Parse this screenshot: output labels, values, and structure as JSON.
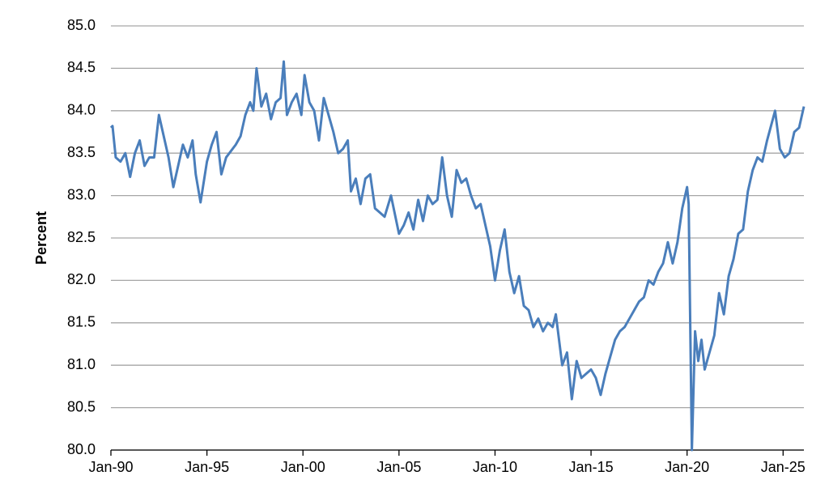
{
  "chart_data": {
    "type": "line",
    "y_label": "Percent",
    "x": [
      "Jan-90",
      "Feb-90",
      "Apr-90",
      "Jul-90",
      "Oct-90",
      "Jan-91",
      "Apr-91",
      "Jul-91",
      "Oct-91",
      "Jan-92",
      "Apr-92",
      "Jul-92",
      "Oct-92",
      "Jan-93",
      "Apr-93",
      "Jul-93",
      "Oct-93",
      "Jan-94",
      "Apr-94",
      "Jun-94",
      "Sep-94",
      "Jan-95",
      "Apr-95",
      "Jul-95",
      "Oct-95",
      "Jan-96",
      "Jul-96",
      "Oct-96",
      "Jan-97",
      "Apr-97",
      "Jun-97",
      "Aug-97",
      "Nov-97",
      "Feb-98",
      "May-98",
      "Aug-98",
      "Nov-98",
      "Jan-99",
      "Mar-99",
      "Jun-99",
      "Sep-99",
      "Dec-99",
      "Feb-00",
      "May-00",
      "Aug-00",
      "Nov-00",
      "Feb-01",
      "May-01",
      "Aug-01",
      "Nov-01",
      "Feb-02",
      "May-02",
      "Jul-02",
      "Oct-02",
      "Jan-03",
      "Apr-03",
      "Jul-03",
      "Oct-03",
      "Jan-04",
      "Apr-04",
      "Aug-04",
      "Jan-05",
      "Apr-05",
      "Jul-05",
      "Oct-05",
      "Jan-06",
      "Apr-06",
      "Jul-06",
      "Oct-06",
      "Jan-07",
      "Apr-07",
      "Jul-07",
      "Oct-07",
      "Jan-08",
      "Apr-08",
      "Jul-08",
      "Oct-08",
      "Jan-09",
      "Apr-09",
      "Jul-09",
      "Oct-09",
      "Jan-10",
      "Apr-10",
      "Jul-10",
      "Oct-10",
      "Jan-11",
      "Apr-11",
      "Jul-11",
      "Oct-11",
      "Jan-12",
      "Apr-12",
      "Jul-12",
      "Oct-12",
      "Jan-13",
      "Mar-13",
      "Jul-13",
      "Oct-13",
      "Jan-14",
      "Apr-14",
      "Jul-14",
      "Oct-14",
      "Jan-15",
      "Apr-15",
      "Jul-15",
      "Oct-15",
      "Jan-16",
      "Apr-16",
      "Jul-16",
      "Oct-16",
      "Jan-17",
      "Apr-17",
      "Jul-17",
      "Oct-17",
      "Jan-18",
      "Apr-18",
      "Jul-18",
      "Oct-18",
      "Jan-19",
      "Apr-19",
      "Jul-19",
      "Oct-19",
      "Jan-20",
      "Feb-20",
      "Apr-20",
      "Jun-20",
      "Aug-20",
      "Oct-20",
      "Dec-20",
      "Mar-21",
      "Jun-21",
      "Sep-21",
      "Dec-21",
      "Mar-22",
      "Jun-22",
      "Sep-22",
      "Dec-22",
      "Mar-23",
      "Jun-23",
      "Sep-23",
      "Dec-23",
      "Mar-24",
      "Aug-24",
      "Nov-24",
      "Feb-25",
      "May-25",
      "Aug-25",
      "Nov-25",
      "Feb-26"
    ],
    "series": [
      {
        "color": "#4a7ebb",
        "values": [
          83.8,
          83.82,
          83.45,
          83.4,
          83.5,
          83.22,
          83.5,
          83.65,
          83.35,
          83.45,
          83.45,
          83.95,
          83.7,
          83.45,
          83.1,
          83.35,
          83.6,
          83.45,
          83.65,
          83.25,
          82.92,
          83.4,
          83.6,
          83.75,
          83.25,
          83.45,
          83.6,
          83.7,
          83.95,
          84.1,
          84.0,
          84.5,
          84.05,
          84.2,
          83.9,
          84.1,
          84.15,
          84.58,
          83.95,
          84.1,
          84.2,
          83.95,
          84.42,
          84.1,
          84.0,
          83.65,
          84.15,
          83.95,
          83.75,
          83.5,
          83.55,
          83.65,
          83.05,
          83.2,
          82.9,
          83.2,
          83.25,
          82.85,
          82.8,
          82.75,
          83.0,
          82.55,
          82.65,
          82.8,
          82.6,
          82.95,
          82.7,
          83.0,
          82.9,
          82.95,
          83.45,
          83.0,
          82.75,
          83.3,
          83.15,
          83.2,
          83.0,
          82.85,
          82.9,
          82.65,
          82.4,
          82.0,
          82.35,
          82.6,
          82.1,
          81.85,
          82.05,
          81.7,
          81.65,
          81.45,
          81.55,
          81.4,
          81.5,
          81.45,
          81.6,
          81.0,
          81.15,
          80.6,
          81.05,
          80.85,
          80.9,
          80.95,
          80.85,
          80.65,
          80.9,
          81.1,
          81.3,
          81.4,
          81.45,
          81.55,
          81.65,
          81.75,
          81.8,
          82.0,
          81.95,
          82.1,
          82.2,
          82.45,
          82.2,
          82.45,
          82.85,
          83.1,
          82.9,
          80.0,
          81.4,
          81.05,
          81.3,
          80.95,
          81.15,
          81.35,
          81.85,
          81.6,
          82.05,
          82.25,
          82.55,
          82.6,
          83.05,
          83.3,
          83.45,
          83.4,
          83.65,
          84.0,
          83.55,
          83.45,
          83.5,
          83.75,
          83.8,
          84.05
        ]
      }
    ],
    "xlim": [
      "Jan-90",
      "Feb-26"
    ],
    "xticks": [
      "Jan-90",
      "Jan-95",
      "Jan-00",
      "Jan-05",
      "Jan-10",
      "Jan-15",
      "Jan-20",
      "Jan-25"
    ],
    "ylim": [
      80,
      85
    ],
    "yticks": [
      {
        "value": 80,
        "label": "80.0"
      },
      80.5,
      {
        "value": 81,
        "label": "81.0"
      },
      81.5,
      {
        "value": 82,
        "label": "82.0"
      },
      82.5,
      {
        "value": 83,
        "label": "83.0"
      },
      83.5,
      {
        "value": 84,
        "label": "84.0"
      },
      84.5,
      {
        "value": 85,
        "label": "85.0"
      }
    ],
    "grid": true
  }
}
